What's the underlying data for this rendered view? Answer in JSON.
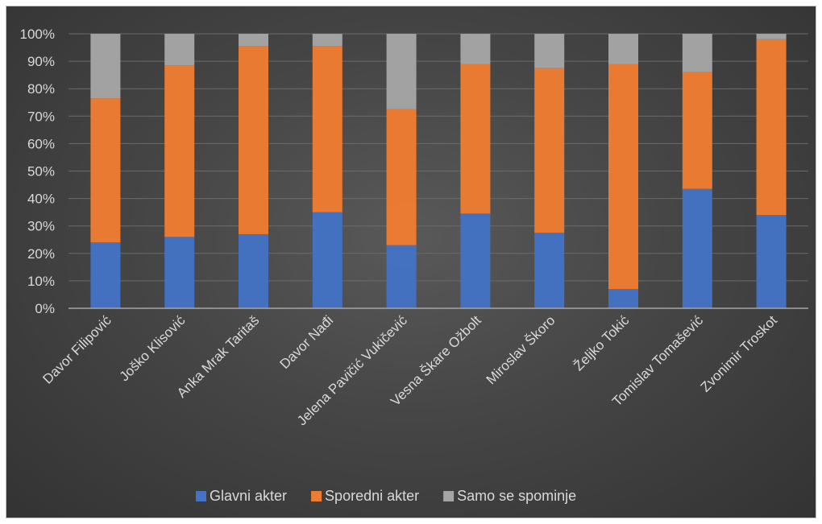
{
  "chart_data": {
    "type": "bar",
    "stacked": true,
    "percent": true,
    "categories": [
      "Davor Filipović",
      "Joško Klisović",
      "Anka Mrak Taritaš",
      "Davor Nađi",
      "Jelena Pavičić Vukičević",
      "Vesna Škare Ožbolt",
      "Miroslav Škoro",
      "Željko Tokić",
      "Tomislav Tomašević",
      "Zvonimir Troskot"
    ],
    "series": [
      {
        "name": "Glavni akter",
        "color": "#4472c4",
        "values": [
          24,
          26,
          27,
          35,
          23,
          34.5,
          27.5,
          7,
          43.5,
          34
        ]
      },
      {
        "name": "Sporedni akter",
        "color": "#ed7d31",
        "values": [
          52.5,
          62.5,
          68.5,
          60.5,
          49.5,
          54.5,
          60,
          82,
          42.5,
          64
        ]
      },
      {
        "name": "Samo se spominje",
        "color": "#a5a5a5",
        "values": [
          23.5,
          11.5,
          4.5,
          4.5,
          27.5,
          11,
          12.5,
          11,
          14,
          2
        ]
      }
    ],
    "ylim": [
      0,
      100
    ],
    "yticks": [
      "0%",
      "10%",
      "20%",
      "30%",
      "40%",
      "50%",
      "60%",
      "70%",
      "80%",
      "90%",
      "100%"
    ],
    "grid": true,
    "legend_position": "bottom",
    "title": "",
    "xlabel": "",
    "ylabel": ""
  }
}
